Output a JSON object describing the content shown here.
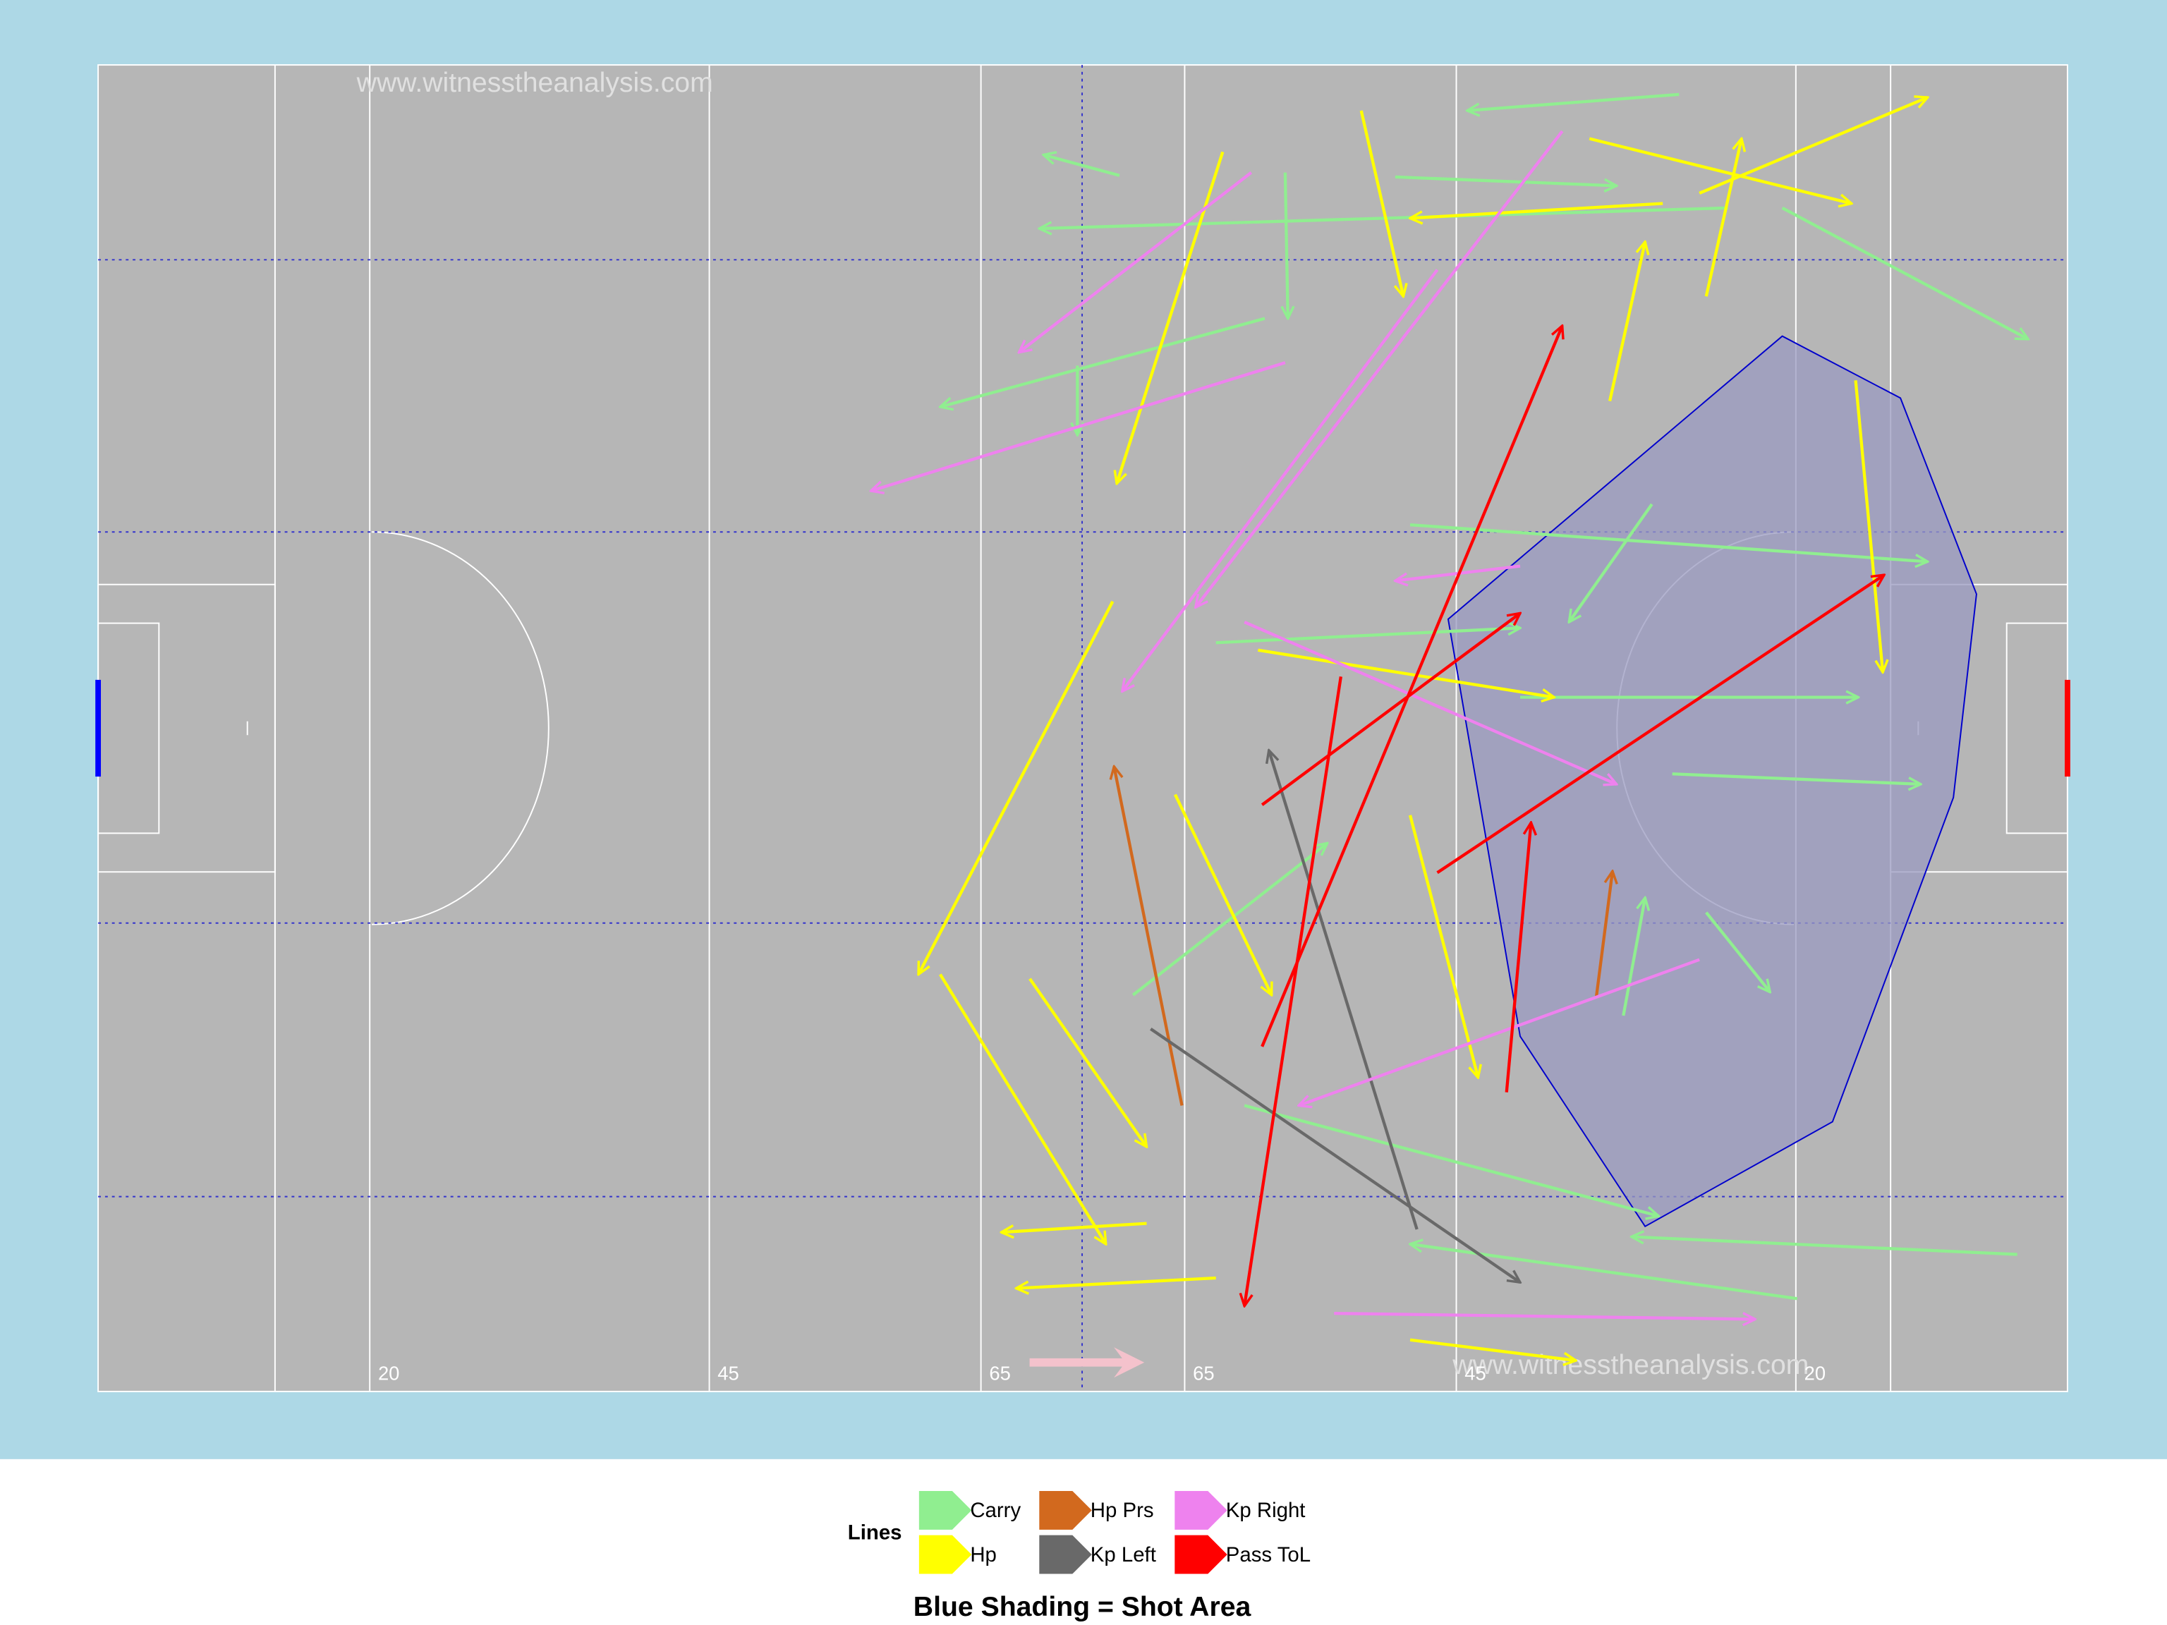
{
  "chart_data": {
    "type": "arrows",
    "watermark": "www.witnesstheanalysis.com",
    "legend_title": "Lines",
    "xlim": [
      0,
      145
    ],
    "ylim": [
      0,
      90
    ],
    "xticks": [
      20,
      45,
      65,
      {
        "value": 80,
        "label": "65"
      },
      {
        "value": 100,
        "label": "45"
      },
      {
        "value": 125,
        "label": "20"
      }
    ],
    "shot_area": {
      "label": "Blue Shading = Shot Area",
      "color": "#9999c0",
      "x": [
        99.4,
        124.0,
        132.7,
        138.3,
        136.6,
        127.7,
        113.9,
        104.7
      ],
      "y": [
        52.4,
        71.6,
        67.4,
        54.1,
        40.3,
        18.3,
        11.2,
        24.1
      ]
    },
    "series": [
      {
        "name": "Carry",
        "color": "#90ee90",
        "x_start": [
          116.4,
          75.2,
          120.0,
          124.0,
          85.9,
          95.5,
          104.7,
          115.9,
          112.3,
          141.3,
          82.3,
          96.6,
          87.4,
          72.1,
          118.4,
          84.4,
          125.1,
          76.2,
          114.4
        ],
        "y_start": [
          88.0,
          82.5,
          80.3,
          80.3,
          72.8,
          82.4,
          47.1,
          41.9,
          25.5,
          9.3,
          50.8,
          58.8,
          82.7,
          69.6,
          32.5,
          19.4,
          6.3,
          26.9,
          60.2
        ],
        "x_end": [
          100.8,
          69.6,
          69.3,
          142.1,
          62.0,
          111.8,
          129.6,
          134.2,
          113.9,
          112.9,
          104.7,
          134.7,
          87.6,
          72.1,
          123.1,
          114.9,
          96.6,
          90.5,
          108.3
        ],
        "y_end": [
          86.9,
          83.9,
          78.9,
          71.4,
          66.8,
          81.8,
          47.1,
          41.2,
          33.5,
          10.5,
          51.8,
          56.3,
          72.8,
          64.9,
          27.1,
          11.9,
          10.0,
          37.2,
          52.2
        ]
      },
      {
        "name": "Hp",
        "color": "#ffff00",
        "x_start": [
          82.8,
          74.7,
          115.2,
          109.8,
          129.4,
          111.3,
          118.4,
          93.0,
          85.4,
          79.3,
          62.0,
          82.3,
          68.6,
          96.6,
          96.6,
          117.9,
          77.2
        ],
        "y_start": [
          84.1,
          53.6,
          80.6,
          85.0,
          68.6,
          67.2,
          74.3,
          86.9,
          50.3,
          40.5,
          28.3,
          7.7,
          28.0,
          39.1,
          3.5,
          81.3,
          11.4
        ],
        "x_end": [
          75.0,
          60.4,
          96.6,
          129.1,
          131.4,
          113.9,
          121.0,
          96.1,
          107.2,
          86.4,
          74.2,
          67.6,
          77.2,
          101.6,
          108.8,
          134.7,
          66.5
        ],
        "y_end": [
          61.6,
          28.3,
          79.6,
          80.6,
          48.8,
          78.0,
          85.0,
          74.3,
          47.1,
          26.9,
          10.0,
          7.0,
          16.6,
          21.3,
          2.1,
          87.8,
          10.8
        ]
      },
      {
        "name": "Hp Prs",
        "color": "#d2691e",
        "x_start": [
          79.8,
          110.3
        ],
        "y_start": [
          19.4,
          26.7
        ],
        "x_end": [
          74.8,
          111.5
        ],
        "y_end": [
          42.4,
          35.3
        ]
      },
      {
        "name": "Kp Left",
        "color": "#696969",
        "x_start": [
          97.1,
          77.5
        ],
        "y_start": [
          11.0,
          24.6
        ],
        "x_end": [
          86.2,
          104.7
        ],
        "y_end": [
          43.5,
          7.4
        ]
      },
      {
        "name": "Kp Right",
        "color": "#ee82ee",
        "x_start": [
          107.8,
          87.4,
          84.9,
          98.6,
          117.9,
          91.0,
          84.4,
          104.7
        ],
        "y_start": [
          85.5,
          69.8,
          82.7,
          76.1,
          29.3,
          5.3,
          52.2,
          56.0
        ],
        "x_end": [
          80.8,
          56.9,
          67.8,
          75.4,
          88.4,
          122.0,
          111.8,
          95.5
        ],
        "y_end": [
          53.2,
          61.1,
          70.5,
          47.5,
          19.4,
          4.9,
          41.2,
          55.0
        ]
      },
      {
        "name": "Pass ToL",
        "color": "#ff0000",
        "x_start": [
          85.7,
          98.6,
          85.7,
          91.5,
          103.7
        ],
        "y_start": [
          39.8,
          35.2,
          23.4,
          48.5,
          20.3
        ],
        "x_end": [
          104.7,
          131.5,
          107.8,
          84.4,
          105.5
        ],
        "y_end": [
          52.8,
          55.4,
          72.3,
          5.8,
          38.6
        ]
      }
    ]
  }
}
